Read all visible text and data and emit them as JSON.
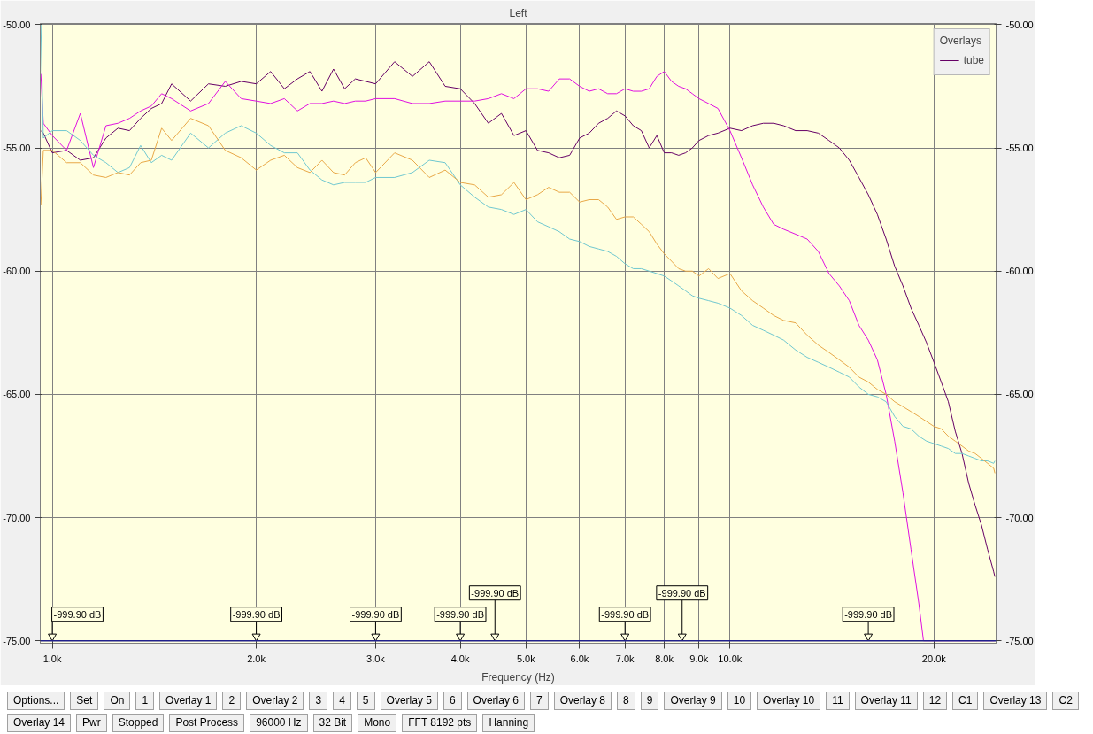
{
  "chart_data": {
    "type": "line",
    "title": "Left",
    "xlabel": "Frequency (Hz)",
    "log": "x",
    "xlim": [
      960,
      24700
    ],
    "ylim": [
      -75.1,
      -49.95
    ],
    "y2lim": [
      -75.1,
      -49.95
    ],
    "xticks": [
      {
        "value": 1000,
        "label": "1.0k"
      },
      {
        "value": 2000,
        "label": "2.0k"
      },
      {
        "value": 3000,
        "label": "3.0k"
      },
      {
        "value": 4000,
        "label": "4.0k"
      },
      {
        "value": 5000,
        "label": "5.0k"
      },
      {
        "value": 6000,
        "label": "6.0k"
      },
      {
        "value": 7000,
        "label": "7.0k"
      },
      {
        "value": 8000,
        "label": "8.0k"
      },
      {
        "value": 9000,
        "label": "9.0k"
      },
      {
        "value": 10000,
        "label": "10.0k"
      },
      {
        "value": 20000,
        "label": "20.0k"
      }
    ],
    "yticks": [
      {
        "value": -50,
        "label": "-50.00"
      },
      {
        "value": -55,
        "label": "-55.00"
      },
      {
        "value": -60,
        "label": "-60.00"
      },
      {
        "value": -65,
        "label": "-65.00"
      },
      {
        "value": -70,
        "label": "-70.00"
      },
      {
        "value": -75,
        "label": "-75.00"
      }
    ],
    "y2ticks": [
      {
        "value": -50,
        "label": "-50.00"
      },
      {
        "value": -55,
        "label": "-55.00"
      },
      {
        "value": -60,
        "label": "-60.00"
      },
      {
        "value": -65,
        "label": "-65.00"
      },
      {
        "value": -70,
        "label": "-70.00"
      },
      {
        "value": -75,
        "label": "-75.00"
      }
    ],
    "grid": true,
    "legend": "top right",
    "legend_title": "Overlays",
    "ref_lines": [
      {
        "axis": "y",
        "value": -75,
        "color": "#20208c"
      }
    ],
    "x": [
      962,
      970,
      1000,
      1050,
      1100,
      1150,
      1200,
      1250,
      1300,
      1350,
      1400,
      1450,
      1500,
      1600,
      1700,
      1800,
      1900,
      2000,
      2100,
      2200,
      2300,
      2400,
      2500,
      2600,
      2700,
      2800,
      2900,
      3000,
      3200,
      3400,
      3600,
      3800,
      4000,
      4200,
      4400,
      4600,
      4800,
      5000,
      5200,
      5400,
      5600,
      5800,
      6000,
      6200,
      6400,
      6600,
      6800,
      7000,
      7200,
      7400,
      7600,
      7800,
      8000,
      8200,
      8400,
      8600,
      8800,
      9000,
      9300,
      9600,
      10000,
      10400,
      10800,
      11200,
      11600,
      12000,
      12500,
      13000,
      13500,
      14000,
      14500,
      15000,
      15500,
      16000,
      16500,
      17000,
      17500,
      18000,
      18500,
      19000,
      19500,
      20000,
      20500,
      21000,
      21500,
      22000,
      22500,
      23000,
      23500,
      24000,
      24500,
      24600
    ],
    "series": [
      {
        "name": "tube",
        "color": "#660066",
        "values": [
          -54.3,
          -54.4,
          -55.2,
          -55.1,
          -55.5,
          -55.4,
          -54.6,
          -54.2,
          -54.3,
          -53.8,
          -53.4,
          -53.2,
          -52.4,
          -53.1,
          -52.4,
          -52.5,
          -52.3,
          -52.4,
          -51.9,
          -52.6,
          -52.2,
          -51.9,
          -52.7,
          -51.8,
          -52.6,
          -52.2,
          -52.3,
          -52.4,
          -51.5,
          -52.1,
          -51.5,
          -52.5,
          -52.6,
          -53.2,
          -54.0,
          -53.6,
          -54.5,
          -54.3,
          -55.1,
          -55.2,
          -55.4,
          -55.3,
          -54.6,
          -54.4,
          -54.0,
          -53.8,
          -53.5,
          -53.7,
          -54.1,
          -54.3,
          -55.0,
          -54.5,
          -55.2,
          -55.2,
          -55.3,
          -55.2,
          -55.0,
          -54.7,
          -54.5,
          -54.4,
          -54.2,
          -54.3,
          -54.1,
          -54.0,
          -54.0,
          -54.1,
          -54.3,
          -54.3,
          -54.4,
          -54.7,
          -55.0,
          -55.5,
          -56.2,
          -56.9,
          -57.7,
          -58.7,
          -59.8,
          -60.6,
          -61.5,
          -62.2,
          -62.9,
          -63.7,
          -64.5,
          -65.3,
          -66.5,
          -67.4,
          -68.6,
          -69.5,
          -70.3,
          -71.3,
          -72.2,
          -72.4
        ]
      },
      {
        "color": "#e010e0",
        "x": [
          962,
          970,
          1000,
          1050,
          1100,
          1150,
          1200,
          1250,
          1300,
          1350,
          1400,
          1450,
          1500,
          1600,
          1700,
          1800,
          1900,
          2000,
          2100,
          2200,
          2300,
          2400,
          2500,
          2600,
          2700,
          2800,
          2900,
          3000,
          3200,
          3400,
          3600,
          3800,
          4000,
          4200,
          4400,
          4600,
          4800,
          5000,
          5200,
          5400,
          5600,
          5800,
          6000,
          6200,
          6400,
          6600,
          6800,
          7000,
          7200,
          7400,
          7600,
          7800,
          8000,
          8200,
          8400,
          8600,
          8800,
          9000,
          9300,
          9600,
          10000,
          10400,
          10800,
          11200,
          11600,
          12000,
          12500,
          13000,
          13500,
          14000,
          14500,
          15000,
          15500,
          16000,
          16500,
          17000,
          17500,
          18000,
          18500,
          19000,
          19300,
          20000,
          24600
        ],
        "values": [
          -52.0,
          -54.0,
          -54.5,
          -55.1,
          -53.6,
          -55.8,
          -54.1,
          -54.0,
          -53.8,
          -53.5,
          -53.3,
          -52.8,
          -53.0,
          -53.5,
          -53.2,
          -52.3,
          -53.0,
          -53.1,
          -53.2,
          -53.0,
          -53.5,
          -53.2,
          -53.2,
          -53.1,
          -53.2,
          -53.1,
          -53.1,
          -53.0,
          -53.0,
          -53.2,
          -53.2,
          -53.1,
          -53.1,
          -53.1,
          -53.0,
          -52.8,
          -53.0,
          -52.6,
          -52.6,
          -52.7,
          -52.2,
          -52.2,
          -52.5,
          -52.7,
          -52.6,
          -52.8,
          -52.8,
          -52.6,
          -52.7,
          -52.7,
          -52.6,
          -52.1,
          -51.9,
          -52.3,
          -52.5,
          -52.6,
          -52.8,
          -53.0,
          -53.2,
          -53.4,
          -54.3,
          -55.4,
          -56.5,
          -57.4,
          -58.1,
          -58.3,
          -58.5,
          -58.7,
          -59.2,
          -60.1,
          -60.6,
          -61.2,
          -62.2,
          -62.8,
          -63.6,
          -65.0,
          -66.9,
          -69.0,
          -71.3,
          -73.5,
          -75.0,
          -75.0,
          -75.0
        ]
      },
      {
        "color": "#70c8d0",
        "values": [
          -50.0,
          -54.6,
          -54.3,
          -54.3,
          -54.7,
          -55.3,
          -55.6,
          -56.0,
          -55.8,
          -54.9,
          -55.6,
          -55.3,
          -55.5,
          -54.4,
          -55.0,
          -54.4,
          -54.1,
          -54.4,
          -54.9,
          -55.2,
          -55.2,
          -55.9,
          -56.3,
          -56.5,
          -56.4,
          -56.4,
          -56.4,
          -56.2,
          -56.2,
          -56.0,
          -55.5,
          -55.6,
          -56.5,
          -57.0,
          -57.4,
          -57.5,
          -57.7,
          -57.5,
          -58.0,
          -58.2,
          -58.4,
          -58.7,
          -58.8,
          -59.0,
          -59.1,
          -59.2,
          -59.4,
          -59.7,
          -59.9,
          -59.9,
          -60.0,
          -60.1,
          -60.2,
          -60.4,
          -60.6,
          -60.8,
          -61.0,
          -61.1,
          -61.2,
          -61.3,
          -61.5,
          -61.8,
          -62.2,
          -62.4,
          -62.6,
          -62.8,
          -63.2,
          -63.5,
          -63.7,
          -63.9,
          -64.1,
          -64.3,
          -64.7,
          -65.0,
          -65.1,
          -65.3,
          -65.9,
          -66.3,
          -66.4,
          -66.7,
          -66.9,
          -67.0,
          -67.1,
          -67.2,
          -67.4,
          -67.4,
          -67.5,
          -67.6,
          -67.7,
          -67.7,
          -67.8,
          -67.7
        ]
      },
      {
        "color": "#e8a848",
        "values": [
          -57.3,
          -55.1,
          -55.1,
          -55.6,
          -55.6,
          -56.1,
          -56.2,
          -56.0,
          -56.1,
          -55.6,
          -55.5,
          -54.2,
          -54.7,
          -53.8,
          -54.1,
          -55.1,
          -55.4,
          -55.9,
          -55.5,
          -55.3,
          -55.8,
          -56.0,
          -55.5,
          -56.0,
          -56.1,
          -55.6,
          -55.4,
          -56.0,
          -55.2,
          -55.5,
          -56.2,
          -55.9,
          -56.4,
          -56.5,
          -57.0,
          -56.9,
          -56.4,
          -57.1,
          -56.9,
          -56.6,
          -56.8,
          -56.8,
          -57.2,
          -57.1,
          -57.1,
          -57.4,
          -57.9,
          -57.8,
          -57.8,
          -58.1,
          -58.4,
          -58.9,
          -59.3,
          -59.6,
          -59.9,
          -60.0,
          -60.0,
          -60.2,
          -59.9,
          -60.3,
          -60.1,
          -60.8,
          -61.2,
          -61.5,
          -61.8,
          -62.0,
          -62.1,
          -62.6,
          -63.0,
          -63.3,
          -63.6,
          -63.9,
          -64.3,
          -64.5,
          -64.8,
          -65.0,
          -65.3,
          -65.5,
          -65.7,
          -65.9,
          -66.1,
          -66.3,
          -66.4,
          -66.7,
          -66.9,
          -67.1,
          -67.3,
          -67.4,
          -67.6,
          -67.8,
          -68.0,
          -68.2
        ]
      }
    ],
    "annotations": [
      {
        "text": "-999.90 dB",
        "x": 1000,
        "y": -75
      },
      {
        "text": "-999.90 dB",
        "x": 2000,
        "y": -75
      },
      {
        "text": "-999.90 dB",
        "x": 3000,
        "y": -75
      },
      {
        "text": "-999.90 dB",
        "x": 4000,
        "y": -75
      },
      {
        "text": "-999.90 dB",
        "x": 4500,
        "y": -75
      },
      {
        "text": "-999.90 dB",
        "x": 7000,
        "y": -75
      },
      {
        "text": "-999.90 dB",
        "x": 8500,
        "y": -75
      },
      {
        "text": "-999.90 dB",
        "x": 16000,
        "y": -75
      },
      "Options...",
      "Set",
      "On",
      "1",
      "Overlay 1",
      "2",
      "Overlay 2",
      "3",
      "4",
      "5",
      "Overlay 5",
      "6",
      "Overlay 6",
      "7",
      "Overlay 8",
      "8",
      "9",
      "Overlay 9",
      "10",
      "Overlay 10",
      "11",
      "Overlay 11",
      "12",
      "C1",
      "Overlay 13",
      "C2",
      "Overlay 14",
      "Pwr",
      "Stopped",
      "Post Process",
      "96000 Hz",
      "32 Bit",
      "Mono",
      "FFT 8192 pts",
      "Hanning"
    ]
  }
}
